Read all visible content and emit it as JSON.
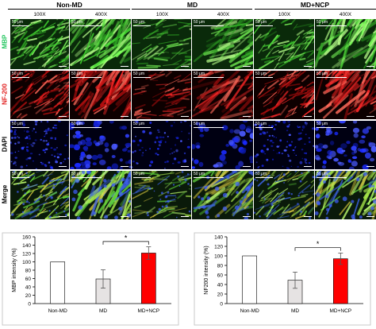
{
  "figure": {
    "groups": [
      "Non-MD",
      "MD",
      "MD+NCP"
    ],
    "magnifications": [
      "100X",
      "400X"
    ],
    "rows": [
      {
        "label": "MBP",
        "color": "#22c55e"
      },
      {
        "label": "NF-200",
        "color": "#e11d1d"
      },
      {
        "label": "DAPI",
        "color": "#111111"
      },
      {
        "label": "Merge",
        "color": "#111111"
      }
    ],
    "scale_label": "50 μm"
  },
  "chart_data": [
    {
      "type": "bar",
      "title": "",
      "categories": [
        "Non-MD",
        "MD",
        "MD+NCP"
      ],
      "values": [
        100,
        59,
        121
      ],
      "errors": [
        0,
        22,
        15
      ],
      "bar_colors": [
        "#ffffff",
        "#e6e3e3",
        "#ff0000"
      ],
      "ylabel": "MBP intensity (%)",
      "xlabel": "",
      "yticks": [
        0,
        20,
        40,
        60,
        80,
        100,
        120,
        140,
        160
      ],
      "ylim": [
        0,
        160
      ],
      "significance": {
        "from": "MD",
        "to": "MD+NCP",
        "label": "*"
      }
    },
    {
      "type": "bar",
      "title": "",
      "categories": [
        "Non-MD",
        "MD",
        "MD+NCP"
      ],
      "values": [
        100,
        49,
        94
      ],
      "errors": [
        0,
        17,
        12
      ],
      "bar_colors": [
        "#ffffff",
        "#e6e3e3",
        "#ff0000"
      ],
      "ylabel": "NF200  intensity (%)",
      "xlabel": "",
      "yticks": [
        0,
        20,
        40,
        60,
        80,
        100,
        120,
        140
      ],
      "ylim": [
        0,
        140
      ],
      "significance": {
        "from": "MD",
        "to": "MD+NCP",
        "label": "*"
      }
    }
  ]
}
